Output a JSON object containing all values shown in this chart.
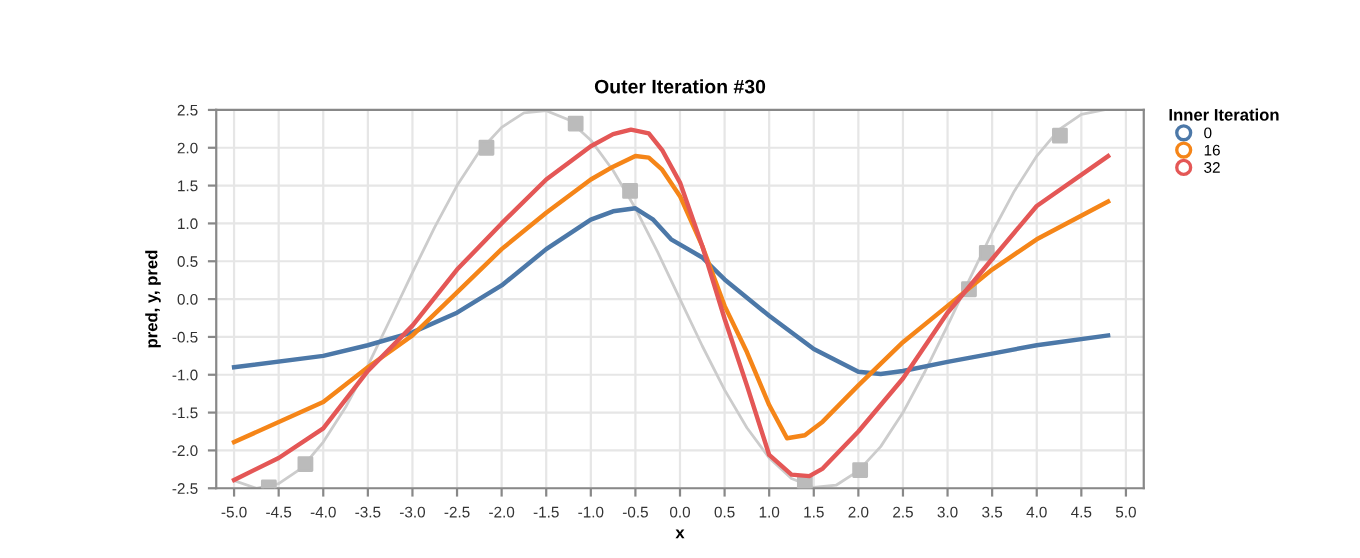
{
  "chart_data": {
    "type": "line",
    "title": "Outer Iteration #30",
    "xlabel": "x",
    "ylabel": "pred, y, pred",
    "legend_title": "Inner Iteration",
    "legend": "top right",
    "grid": true,
    "line_style": "solid",
    "xlim": [
      -5.2,
      5.2
    ],
    "ylim": [
      -2.5,
      2.5
    ],
    "xticks": [
      {
        "value": -5,
        "label": "-5.0"
      },
      {
        "value": -4.5,
        "label": "-4.5"
      },
      {
        "value": -4,
        "label": "-4.0"
      },
      {
        "value": -3.5,
        "label": "-3.5"
      },
      {
        "value": -3,
        "label": "-3.0"
      },
      {
        "value": -2.5,
        "label": "-2.5"
      },
      {
        "value": -2,
        "label": "-2.0"
      },
      {
        "value": -1.5,
        "label": "-1.5"
      },
      {
        "value": -1,
        "label": "-1.0"
      },
      {
        "value": -0.5,
        "label": "-0.5"
      },
      {
        "value": 0,
        "label": "0.0"
      },
      {
        "value": 0.5,
        "label": "0.5"
      },
      {
        "value": 1,
        "label": "1.0"
      },
      {
        "value": 1.5,
        "label": "1.5"
      },
      {
        "value": 2,
        "label": "2.0"
      },
      {
        "value": 2.5,
        "label": "2.5"
      },
      {
        "value": 3,
        "label": "3.0"
      },
      {
        "value": 3.5,
        "label": "3.5"
      },
      {
        "value": 4,
        "label": "4.0"
      },
      {
        "value": 4.5,
        "label": "4.5"
      },
      {
        "value": 5,
        "label": "5.0"
      }
    ],
    "yticks": [
      {
        "value": -2.5,
        "label": "-2.5"
      },
      {
        "value": -2,
        "label": "-2.0"
      },
      {
        "value": -1.5,
        "label": "-1.5"
      },
      {
        "value": -1,
        "label": "-1.0"
      },
      {
        "value": -0.5,
        "label": "-0.5"
      },
      {
        "value": 0,
        "label": "0.0"
      },
      {
        "value": 0.5,
        "label": "0.5"
      },
      {
        "value": 1,
        "label": "1.0"
      },
      {
        "value": 1.5,
        "label": "1.5"
      },
      {
        "value": 2,
        "label": "2.0"
      },
      {
        "value": 2.5,
        "label": "2.5"
      }
    ],
    "series": [
      {
        "color": "#cccccc",
        "x": [
          -5,
          -4.75,
          -4.5,
          -4.25,
          -4,
          -3.75,
          -3.5,
          -3.25,
          -3,
          -2.75,
          -2.5,
          -2.25,
          -2,
          -1.75,
          -1.5,
          -1.25,
          -1,
          -0.75,
          -0.5,
          -0.25,
          0,
          0.25,
          0.5,
          0.75,
          1,
          1.25,
          1.5,
          1.75,
          2,
          2.25,
          2.5,
          2.75,
          3,
          3.25,
          3.5,
          3.75,
          4,
          4.25,
          4.5,
          4.75
        ],
        "values": [
          -2.4,
          -2.5,
          -2.44,
          -2.24,
          -1.89,
          -1.43,
          -0.88,
          -0.27,
          0.35,
          0.95,
          1.5,
          1.95,
          2.27,
          2.46,
          2.49,
          2.37,
          2.1,
          1.7,
          1.2,
          0.62,
          0,
          -0.62,
          -1.2,
          -1.7,
          -2.1,
          -2.37,
          -2.49,
          -2.46,
          -2.27,
          -1.95,
          -1.5,
          -0.95,
          -0.35,
          0.27,
          0.88,
          1.43,
          1.89,
          2.24,
          2.44,
          2.5
        ]
      },
      {
        "type": "scatter",
        "color": "#bbbbbb",
        "marker": "square",
        "x": [
          -4.61,
          -4.2,
          -2.17,
          -1.17,
          -0.56,
          1.4,
          2.02,
          3.24,
          3.44,
          4.26
        ],
        "values": [
          -2.49,
          -2.18,
          2.0,
          2.32,
          1.43,
          -2.43,
          -2.26,
          0.13,
          0.61,
          2.16
        ]
      },
      {
        "name": "0",
        "color": "#4c78a8",
        "x": [
          -5,
          -4,
          -3.5,
          -3,
          -2.5,
          -2,
          -1.5,
          -1,
          -0.75,
          -0.5,
          -0.3,
          -0.1,
          0.25,
          0.5,
          1,
          1.5,
          2,
          2.25,
          2.5,
          3,
          3.5,
          4,
          4.8
        ],
        "values": [
          -0.9,
          -0.75,
          -0.61,
          -0.44,
          -0.18,
          0.18,
          0.66,
          1.05,
          1.16,
          1.2,
          1.05,
          0.79,
          0.55,
          0.26,
          -0.22,
          -0.66,
          -0.96,
          -0.99,
          -0.95,
          -0.83,
          -0.72,
          -0.61,
          -0.48
        ]
      },
      {
        "name": "16",
        "color": "#f58518",
        "x": [
          -5,
          -4,
          -3.5,
          -3,
          -2.5,
          -2,
          -1.5,
          -1,
          -0.75,
          -0.5,
          -0.35,
          -0.2,
          0,
          0.25,
          0.5,
          0.75,
          1,
          1.2,
          1.4,
          1.6,
          2,
          2.5,
          3,
          3.5,
          4,
          4.8
        ],
        "values": [
          -1.89,
          -1.36,
          -0.9,
          -0.48,
          0.09,
          0.66,
          1.14,
          1.58,
          1.75,
          1.89,
          1.87,
          1.71,
          1.36,
          0.7,
          -0.09,
          -0.7,
          -1.4,
          -1.84,
          -1.8,
          -1.62,
          -1.14,
          -0.57,
          -0.09,
          0.39,
          0.79,
          1.29
        ]
      },
      {
        "name": "32",
        "color": "#e45756",
        "x": [
          -5,
          -4.5,
          -4,
          -3.5,
          -3,
          -2.5,
          -2,
          -1.5,
          -1,
          -0.75,
          -0.55,
          -0.35,
          -0.2,
          0,
          0.25,
          0.5,
          0.75,
          1,
          1.25,
          1.45,
          1.6,
          2,
          2.5,
          3,
          3.5,
          4,
          4.8
        ],
        "values": [
          -2.39,
          -2.1,
          -1.71,
          -0.95,
          -0.35,
          0.39,
          1.0,
          1.58,
          2.02,
          2.18,
          2.24,
          2.19,
          1.97,
          1.54,
          0.7,
          -0.26,
          -1.14,
          -2.06,
          -2.32,
          -2.34,
          -2.24,
          -1.75,
          -1.05,
          -0.18,
          0.53,
          1.23,
          1.89
        ]
      }
    ]
  }
}
